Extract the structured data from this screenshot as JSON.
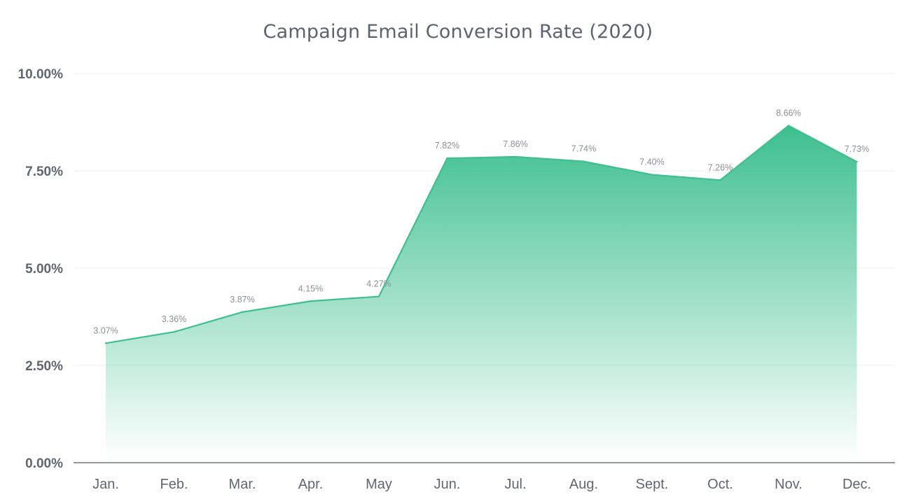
{
  "chart_data": {
    "type": "area",
    "title": "Campaign Email Conversion Rate (2020)",
    "xlabel": "",
    "ylabel": "",
    "categories": [
      "Jan.",
      "Feb.",
      "Mar.",
      "Apr.",
      "May",
      "Jun.",
      "Jul.",
      "Aug.",
      "Sept.",
      "Oct.",
      "Nov.",
      "Dec."
    ],
    "values": [
      3.07,
      3.36,
      3.87,
      4.15,
      4.27,
      7.82,
      7.86,
      7.74,
      7.4,
      7.26,
      8.66,
      7.73
    ],
    "data_labels": [
      "3.07%",
      "3.36%",
      "3.87%",
      "4.15%",
      "4.27%",
      "7.82%",
      "7.86%",
      "7.74%",
      "7.40%",
      "7.26%",
      "8.66%",
      "7.73%"
    ],
    "ylim": [
      0,
      10
    ],
    "y_ticks": [
      0,
      2.5,
      5,
      7.5,
      10
    ],
    "y_tick_labels": [
      "0.00%",
      "2.50%",
      "5.00%",
      "7.50%",
      "10.00%"
    ],
    "grid": true,
    "legend": "none",
    "colors": {
      "line": "#3dbf8f",
      "fill_top": "#3dbf8f",
      "fill_bottom": "#ffffff",
      "grid": "#ececec",
      "axis": "#555b66",
      "text": "#5f6672",
      "data_label": "#8a8f98"
    }
  }
}
